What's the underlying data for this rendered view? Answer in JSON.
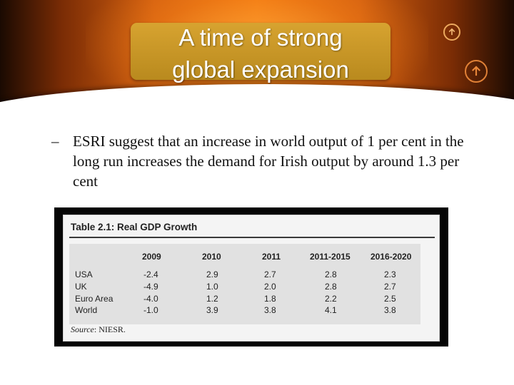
{
  "slide": {
    "title_line1": "A time of strong",
    "title_line2": "global expansion",
    "bullet_dash": "–",
    "bullet": "ESRI suggest that an increase in world output of 1 per cent in the long run increases the demand for Irish output by around 1.3 per cent"
  },
  "icons": [
    "up-arrow-circle-icon",
    "up-arrow-circle-icon"
  ],
  "table": {
    "title": "Table 2.1: Real GDP Growth",
    "columns": [
      "2009",
      "2010",
      "2011",
      "2011-2015",
      "2016-2020"
    ],
    "rows": [
      {
        "label": "USA",
        "values": [
          "-2.4",
          "2.9",
          "2.7",
          "2.8",
          "2.3"
        ]
      },
      {
        "label": "UK",
        "values": [
          "-4.9",
          "1.0",
          "2.0",
          "2.8",
          "2.7"
        ]
      },
      {
        "label": "Euro Area",
        "values": [
          "-4.0",
          "1.2",
          "1.8",
          "2.2",
          "2.5"
        ]
      },
      {
        "label": "World",
        "values": [
          "-1.0",
          "3.9",
          "3.8",
          "4.1",
          "3.8"
        ]
      }
    ],
    "source_label": "Source",
    "source_value": ": NIESR."
  },
  "colors": {
    "banner_orange": "#f07a12",
    "title_box": "#c8951f"
  }
}
